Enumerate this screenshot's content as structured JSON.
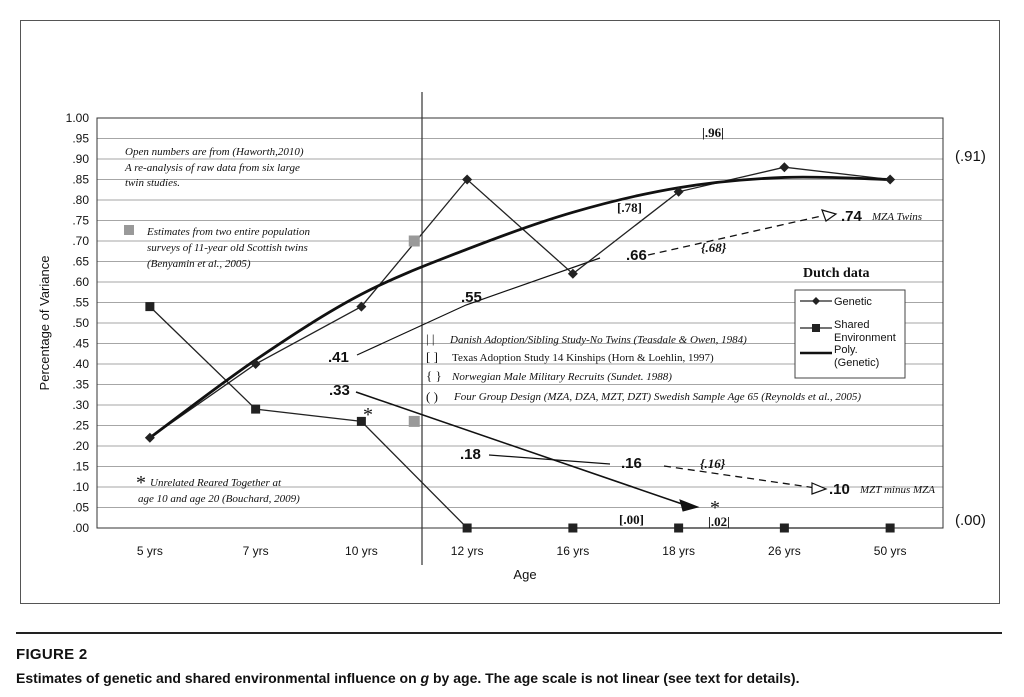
{
  "chart_data": {
    "type": "line",
    "ylabel": "Percentage of Variance",
    "xlabel": "Age",
    "ylim": [
      0,
      1
    ],
    "yticks": [
      ".00",
      ".05",
      ".10",
      ".15",
      ".20",
      ".25",
      ".30",
      ".35",
      ".40",
      ".45",
      ".50",
      ".55",
      ".60",
      ".65",
      ".70",
      ".75",
      ".80",
      ".85",
      ".90",
      ".95",
      "1.00"
    ],
    "categories": [
      "5 yrs",
      "7 yrs",
      "10 yrs",
      "12 yrs",
      "16 yrs",
      "18 yrs",
      "26 yrs",
      "50 yrs"
    ],
    "grid": true,
    "legend_position": "right",
    "series": [
      {
        "name": "Genetic",
        "marker": "diamond",
        "values": [
          0.22,
          0.4,
          0.54,
          0.85,
          0.62,
          0.82,
          0.88,
          0.85
        ]
      },
      {
        "name": "Shared Environment",
        "marker": "square",
        "values": [
          0.54,
          0.29,
          0.26,
          0.0,
          0.0,
          0.0,
          0.0,
          0.0
        ]
      },
      {
        "name": "Poly. (Genetic)",
        "marker": "none",
        "style": "thick",
        "values": [
          0.22,
          0.41,
          0.57,
          0.68,
          0.77,
          0.83,
          0.855,
          0.85
        ]
      }
    ],
    "gray_markers": [
      {
        "x_index": 3,
        "value": 0.7
      },
      {
        "x_index": 3,
        "value": 0.26
      }
    ]
  },
  "right_labels": {
    "top": "(.91)",
    "bottom": "(.00)"
  },
  "legend_items": [
    "Genetic",
    "Shared Environment",
    "Poly. (Genetic)"
  ],
  "annotations": {
    "open_numbers_line1": "Open numbers are from (Haworth,2010)",
    "open_numbers_line2": "A re-analysis of raw data from six large",
    "open_numbers_line3": "twin studies.",
    "scottish_line1": "Estimates from two entire population",
    "scottish_line2": "surveys of 11-year old Scottish twins",
    "scottish_line3": "(Benyamin et al., 2005)",
    "unrelated_line1": "Unrelated Reared Together at",
    "unrelated_line2": "age 10 and age 20 (Bouchard, 2009)",
    "star": "*",
    "dutch": "Dutch data",
    "key_danish_symbol": "|   |",
    "key_danish": "Danish Adoption/Sibling Study-No Twins (Teasdale & Owen, 1984)",
    "key_texas_symbol": "[   ]",
    "key_texas": "Texas Adoption Study 14 Kinships (Horn & Loehlin, 1997)",
    "key_norwegian_symbol": "{   }",
    "key_norwegian": "Norwegian Male Military Recruits (Sundet. 1988)",
    "key_four_symbol": "(   )",
    "key_four": "Four Group Design (MZA, DZA,  MZT, DZT) Swedish Sample Age 65 (Reynolds et al., 2005)",
    "val_96": "|.96|",
    "val_78": "[.78]",
    "val_74": ".74",
    "mza_twins": "MZA Twins",
    "val_68": "{.68}",
    "val_66": ".66",
    "val_55": ".55",
    "val_41": ".41",
    "val_33": ".33",
    "val_18": ".18",
    "val_16": ".16",
    "val_16b": "{.16}",
    "val_10": ".10",
    "mzt_minus": "MZT minus MZA",
    "val_00": "[.00]",
    "val_02": "|.02|"
  },
  "caption": {
    "title": "FIGURE 2",
    "text_before": "Estimates of genetic and shared environmental influence on ",
    "text_italic": "g",
    "text_after": " by age. The age scale is not linear (see text for details)."
  },
  "colors": {
    "series": "#222222",
    "gray_marker": "#999999",
    "grid": "#888888"
  }
}
